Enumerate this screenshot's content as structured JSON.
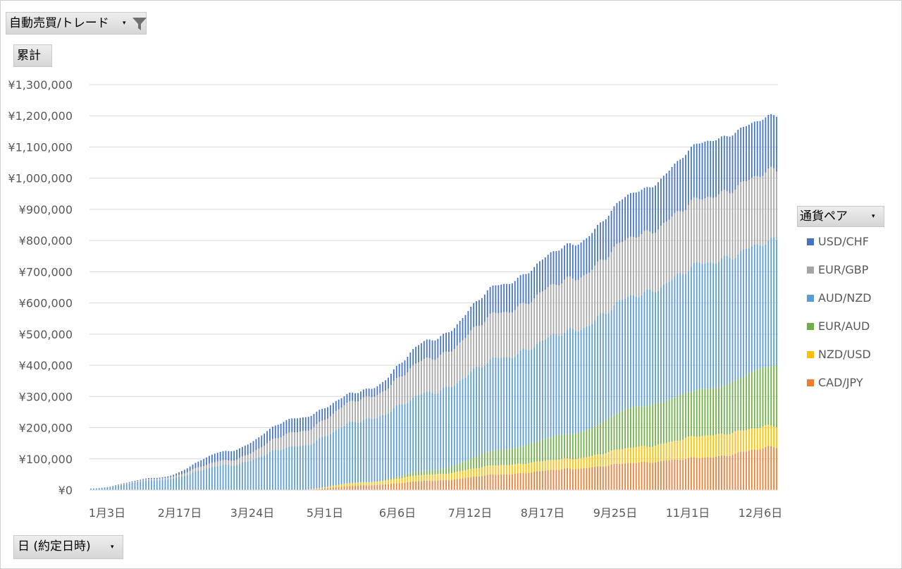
{
  "filter_field": {
    "label": "自動売買/トレード",
    "dropdown_glyph": "▾",
    "icon": "filter-icon"
  },
  "values_field": {
    "label": "累計"
  },
  "axis_field": {
    "label": "日 (約定日時)",
    "dropdown_glyph": "▾"
  },
  "legend_field": {
    "label": "通貨ペア",
    "dropdown_glyph": "▾"
  },
  "chart_data": {
    "type": "bar",
    "stacked": true,
    "title": "",
    "xlabel": "",
    "ylabel": "",
    "ylim": [
      0,
      1300000
    ],
    "y_ticks": [
      0,
      100000,
      200000,
      300000,
      400000,
      500000,
      600000,
      700000,
      800000,
      900000,
      1000000,
      1100000,
      1200000,
      1300000
    ],
    "y_tick_labels": [
      "¥0",
      "¥100,000",
      "¥200,000",
      "¥300,000",
      "¥400,000",
      "¥500,000",
      "¥600,000",
      "¥700,000",
      "¥800,000",
      "¥900,000",
      "¥1,000,000",
      "¥1,100,000",
      "¥1,200,000",
      "¥1,300,000"
    ],
    "grid": true,
    "legend_position": "right",
    "categories": [
      "1月3日",
      "2月17日",
      "3月24日",
      "5月1日",
      "6月6日",
      "7月12日",
      "8月17日",
      "9月25日",
      "11月1日",
      "12月6日",
      ""
    ],
    "x_tick_labels": [
      "1月3日",
      "2月17日",
      "3月24日",
      "5月1日",
      "6月6日",
      "7月12日",
      "8月17日",
      "9月25日",
      "11月1日",
      "12月6日"
    ],
    "bars_drawn_count": 250,
    "series": [
      {
        "name": "CAD/JPY",
        "color": "#ED7D31",
        "values": [
          0,
          0,
          0,
          0,
          15000,
          30000,
          50000,
          68000,
          88000,
          105000,
          138000
        ]
      },
      {
        "name": "NZD/USD",
        "color": "#FFC000",
        "values": [
          0,
          0,
          0,
          0,
          10000,
          20000,
          30000,
          32000,
          50000,
          70000,
          68000
        ]
      },
      {
        "name": "EUR/AUD",
        "color": "#70AD47",
        "values": [
          0,
          0,
          0,
          0,
          0,
          15000,
          50000,
          80000,
          130000,
          150000,
          194000
        ]
      },
      {
        "name": "AUD/NZD",
        "color": "#5B9BD5",
        "values": [
          5000,
          32000,
          80000,
          140000,
          200000,
          250000,
          295000,
          330000,
          360000,
          405000,
          400000
        ]
      },
      {
        "name": "EUR/GBP",
        "color": "#A5A5A5",
        "values": [
          0,
          5000,
          15000,
          45000,
          70000,
          110000,
          145000,
          165000,
          190000,
          210000,
          225000
        ]
      },
      {
        "name": "USD/CHF",
        "color": "#4472C4",
        "values": [
          0,
          3000,
          30000,
          45000,
          25000,
          60000,
          90000,
          110000,
          142000,
          180000,
          175000
        ]
      }
    ]
  }
}
